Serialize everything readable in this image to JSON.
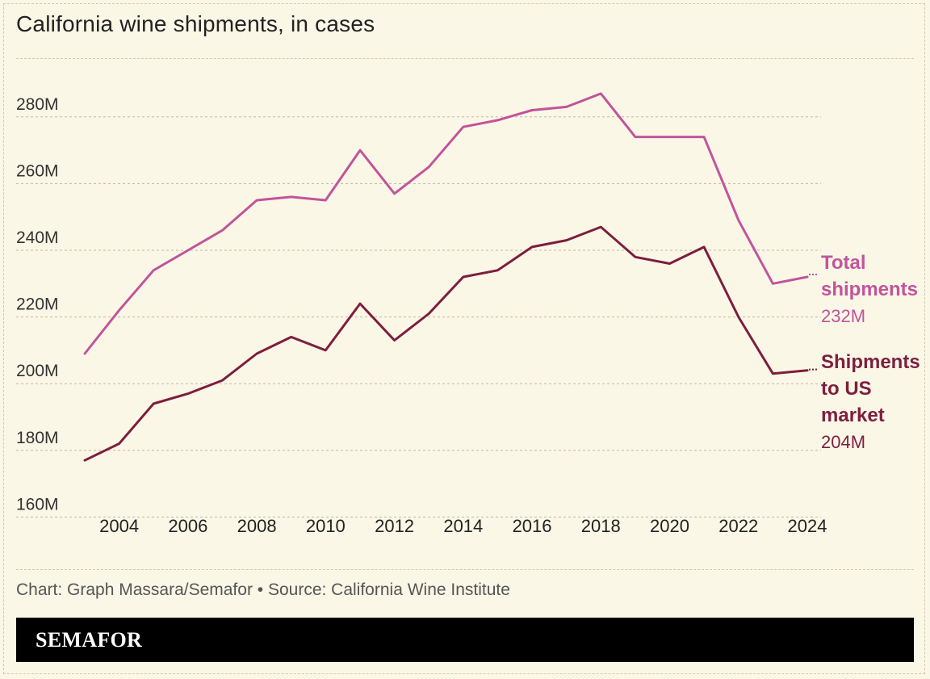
{
  "header": {
    "title": "California wine shipments, in cases"
  },
  "footer": {
    "source": "Chart: Graph Massara/Semafor • Source: California Wine Institute",
    "brand": "SEMAFOR"
  },
  "colors": {
    "total": "#c2549b",
    "us": "#7d1e3f",
    "grid": "#bdb8a3",
    "background": "#fbf7e6"
  },
  "chart_data": {
    "type": "line",
    "title": "California wine shipments, in cases",
    "xlabel": "",
    "ylabel": "",
    "x": [
      2003,
      2004,
      2005,
      2006,
      2007,
      2008,
      2009,
      2010,
      2011,
      2012,
      2013,
      2014,
      2015,
      2016,
      2017,
      2018,
      2019,
      2020,
      2021,
      2022,
      2023,
      2024
    ],
    "xticks": [
      "2004",
      "2006",
      "2008",
      "2010",
      "2012",
      "2014",
      "2016",
      "2018",
      "2020",
      "2022",
      "2024"
    ],
    "yticks": [
      "160M",
      "180M",
      "200M",
      "220M",
      "240M",
      "260M",
      "280M"
    ],
    "ylim": [
      160,
      290
    ],
    "xlim": [
      2003,
      2024
    ],
    "grid": true,
    "series": [
      {
        "name": "Total shipments",
        "label_lines": [
          "Total",
          "shipments"
        ],
        "end_label": "232M",
        "color": "#c2549b",
        "values": [
          209,
          222,
          234,
          240,
          246,
          255,
          256,
          255,
          270,
          257,
          265,
          277,
          279,
          282,
          283,
          287,
          274,
          274,
          274,
          249,
          230,
          232
        ]
      },
      {
        "name": "Shipments to US market",
        "label_lines": [
          "Shipments",
          "to US",
          "market"
        ],
        "end_label": "204M",
        "color": "#7d1e3f",
        "values": [
          177,
          182,
          194,
          197,
          201,
          209,
          214,
          210,
          224,
          213,
          221,
          232,
          234,
          241,
          243,
          247,
          238,
          236,
          241,
          220,
          203,
          204
        ]
      }
    ]
  }
}
